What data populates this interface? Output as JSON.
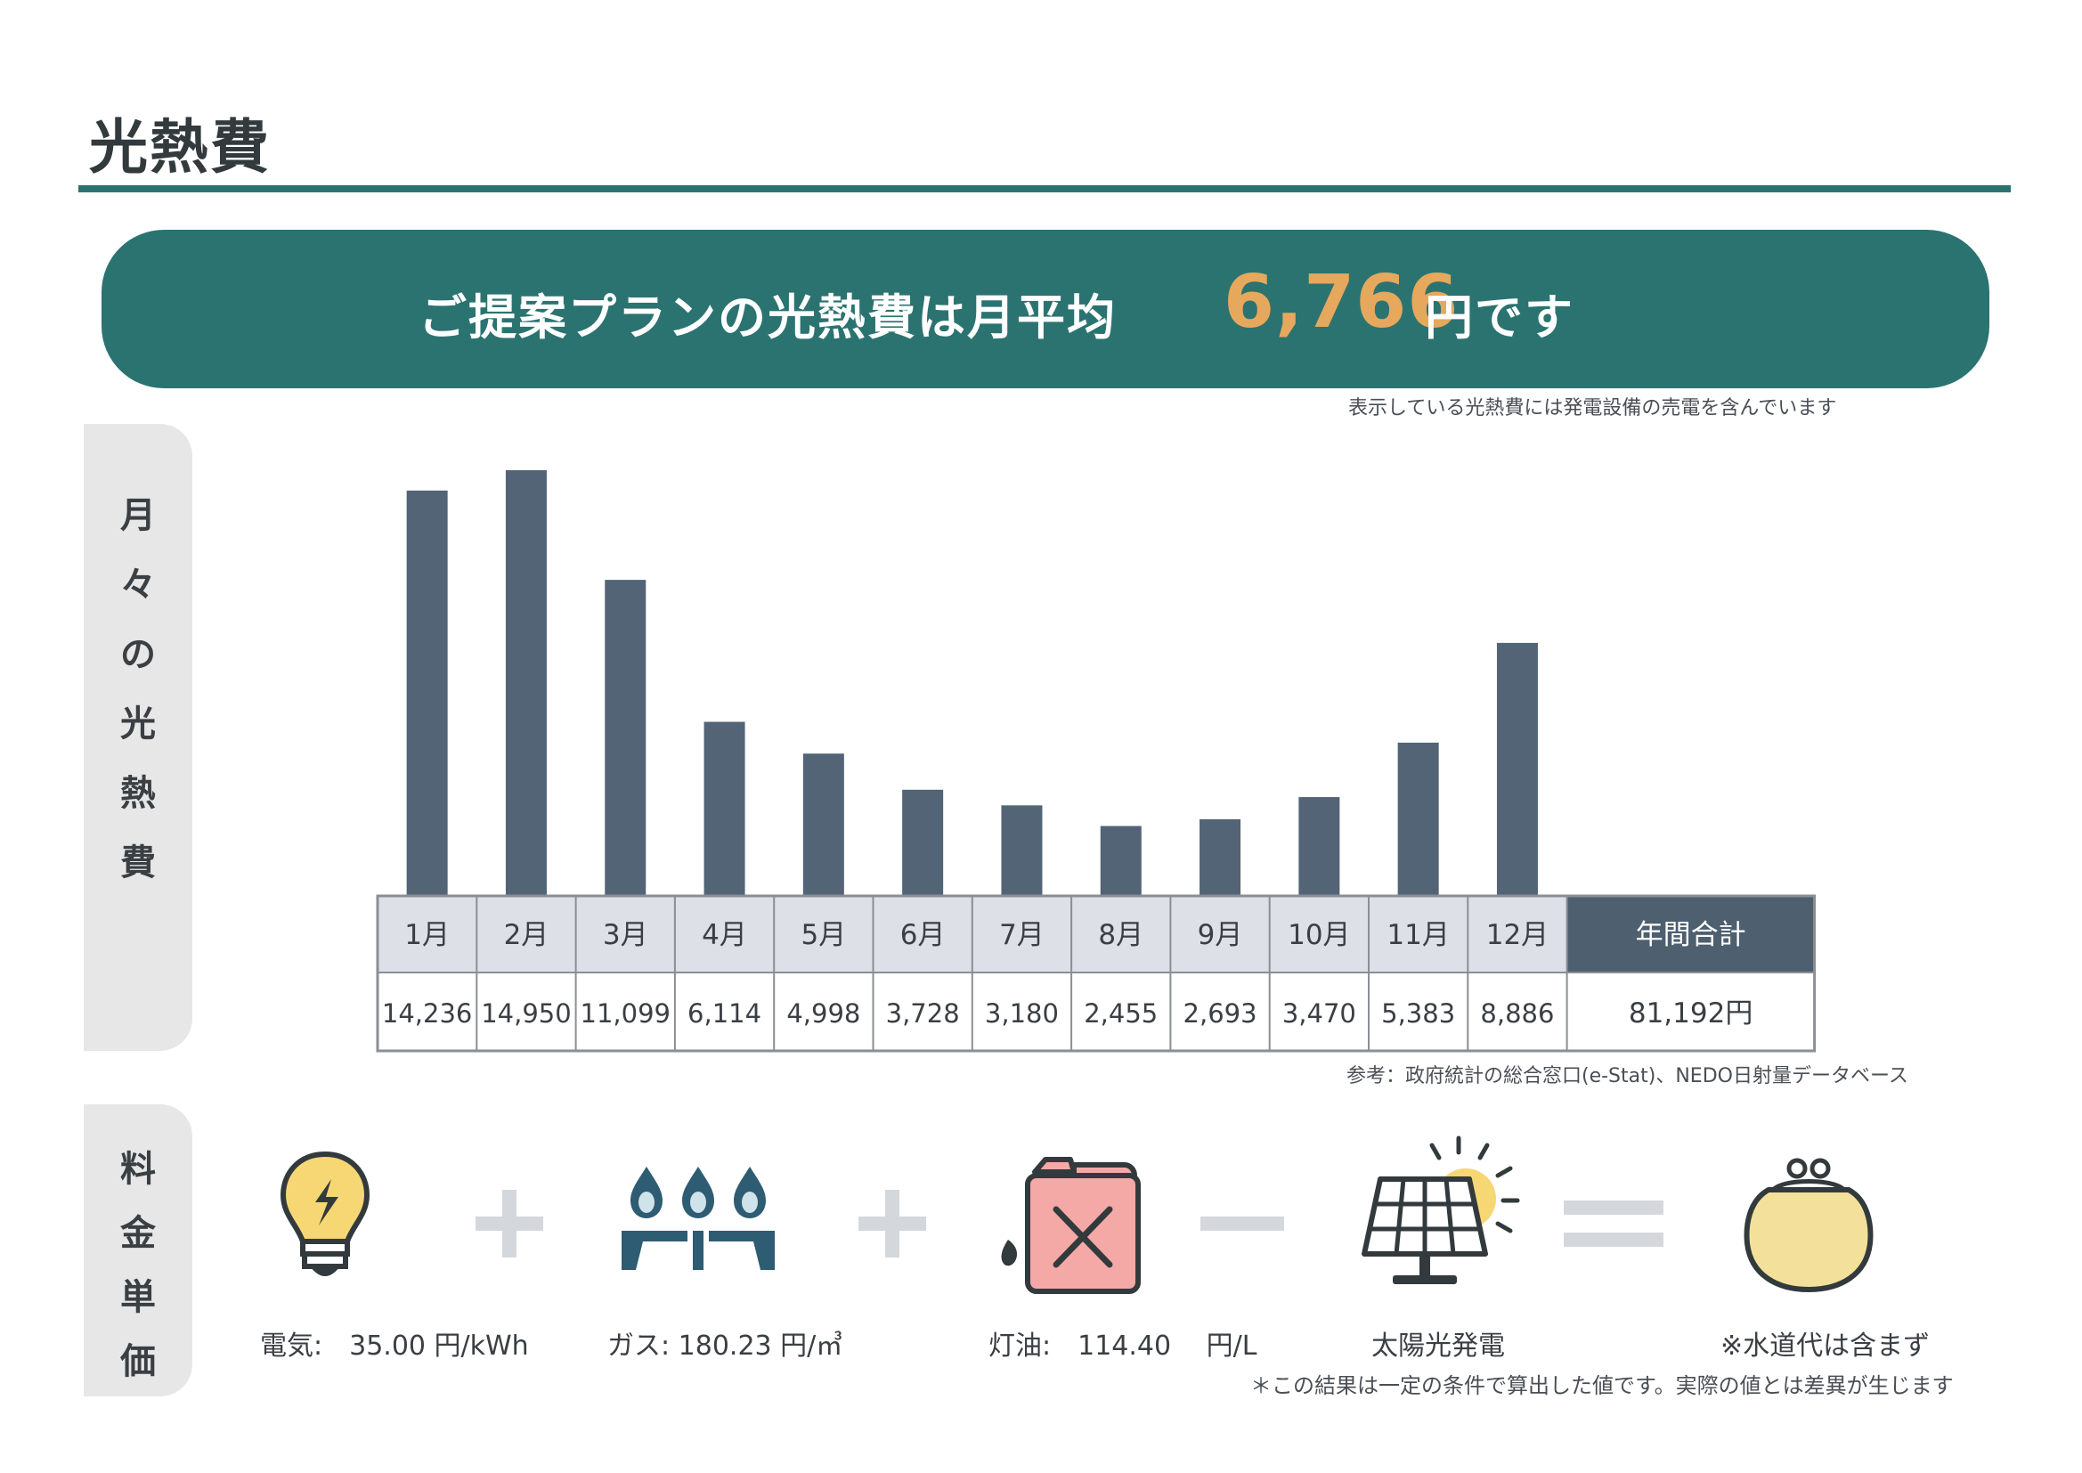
{
  "title": "光熱費",
  "banner": {
    "text": "ご提案プランの光熱費は月平均",
    "value": "6,766",
    "unit": "円です"
  },
  "banner_note": "表示している光熱費には発電設備の売電を含んでいます",
  "side_labels": {
    "monthly": [
      "月",
      "々",
      "の",
      "光",
      "熱",
      "費"
    ],
    "rates": [
      "料",
      "金",
      "単",
      "価"
    ]
  },
  "chart_data": {
    "type": "bar",
    "categories": [
      "1月",
      "2月",
      "3月",
      "4月",
      "5月",
      "6月",
      "7月",
      "8月",
      "9月",
      "10月",
      "11月",
      "12月"
    ],
    "values": [
      14236,
      14950,
      11099,
      6114,
      4998,
      3728,
      3180,
      2455,
      2693,
      3470,
      5383,
      8886
    ],
    "value_labels": [
      "14,236",
      "14,950",
      "11,099",
      "6,114",
      "4,998",
      "3,728",
      "3,180",
      "2,455",
      "2,693",
      "3,470",
      "5,383",
      "8,886"
    ],
    "total_header": "年間合計",
    "total_value": "81,192円",
    "bar_color": "#526475",
    "header_bg": "#dde0e6",
    "total_header_bg": "#4e5f6f"
  },
  "source_note": "参考：政府統計の総合窓口(e-Stat)、NEDO日射量データベース",
  "rates": {
    "electricity": {
      "icon": "lightbulb-icon",
      "label": "電気:　35.00 円/kWh"
    },
    "gas": {
      "icon": "gas-burner-icon",
      "label": "ガス:  180.23 円/㎥"
    },
    "kerosene": {
      "icon": "kerosene-tank-icon",
      "label": "灯油:　114.40　 円/L"
    },
    "solar": {
      "icon": "solar-panel-icon",
      "label": "太陽光発電"
    },
    "water": {
      "icon": "purse-icon",
      "label": "※水道代は含まず"
    }
  },
  "operators": {
    "plus": "+",
    "minus": "−",
    "equals": "="
  },
  "bottom_note": "＊この結果は一定の条件で算出した値です。実際の値とは差異が生じます",
  "colors": {
    "teal": "#2b7370",
    "orange": "#e6a85c",
    "gray_panel": "#e7e7e7",
    "operator": "#d4d8dc",
    "icon_dark": "#333a3d",
    "bulb_yellow": "#f6d774",
    "gas_blue": "#2e5c72",
    "tank_pink": "#f5a9a6",
    "purse_yellow": "#f3e09a"
  }
}
